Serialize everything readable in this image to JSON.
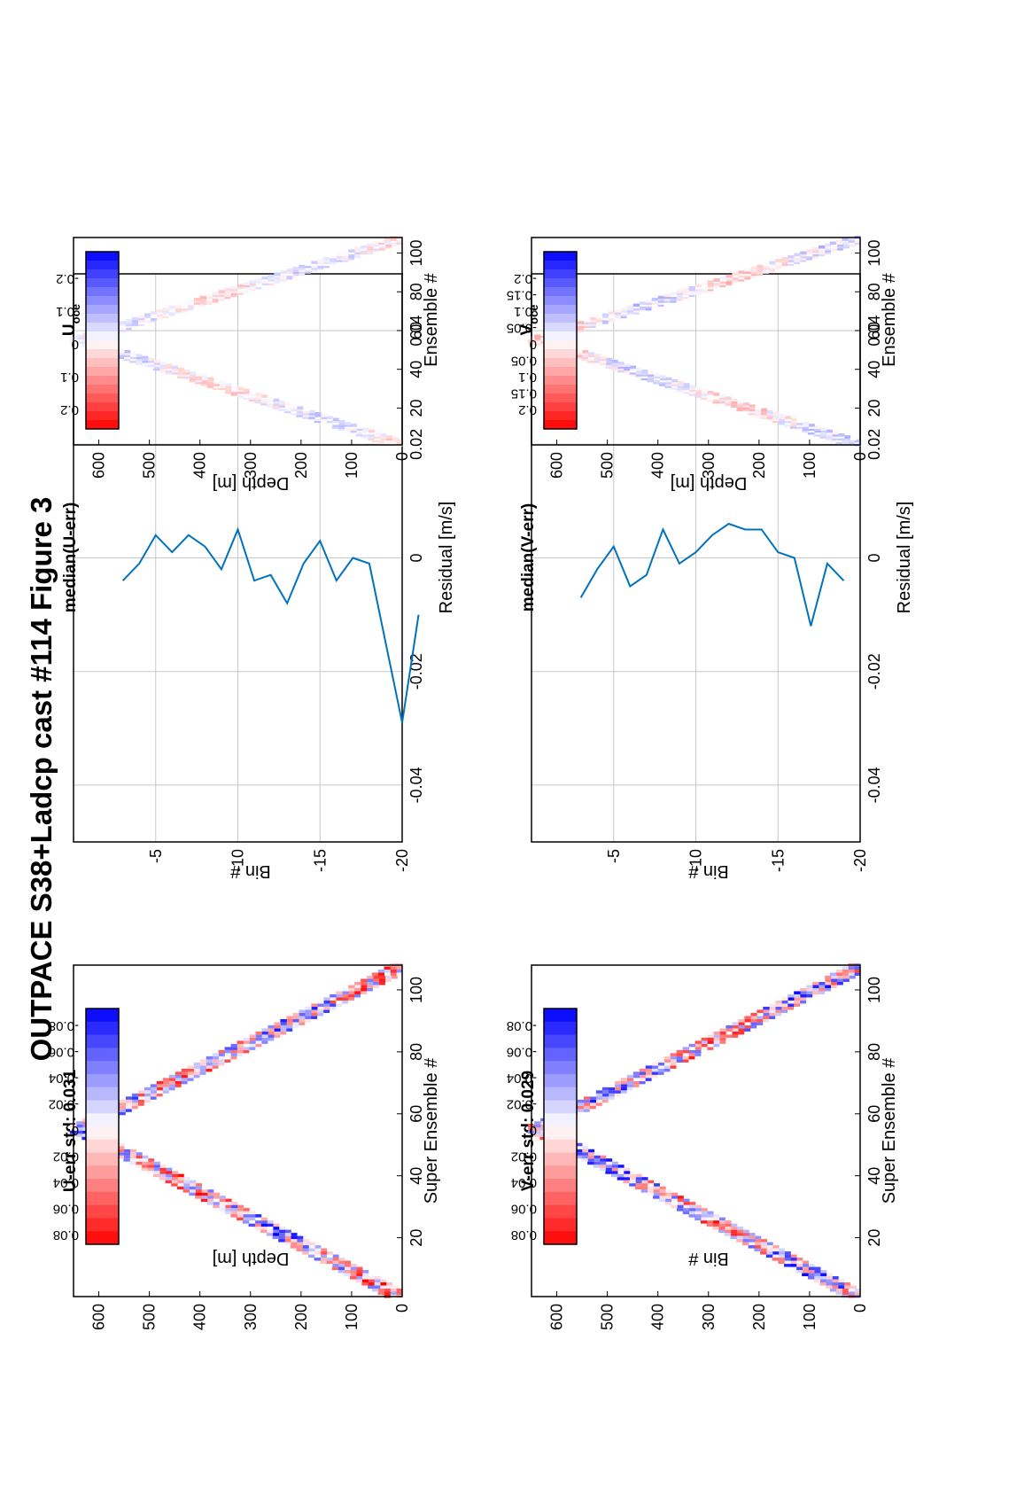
{
  "figure": {
    "title": "OUTPACE S38+Ladcp cast #114  Figure 3"
  },
  "colors": {
    "positive": "#ff0000",
    "negative": "#0000ff",
    "zero": "#ffffff",
    "line": "#0072bd",
    "grid": "#c8c8c8"
  },
  "panels": {
    "u_err": {
      "title": "U-err std: 0.031",
      "ylabel": "Depth [m]",
      "xlabel": "Super Ensemble #",
      "colorbar_ticks": [
        "0.08",
        "0.06",
        "0.04",
        "0.02",
        "0",
        "-0.02",
        "-0.04",
        "-0.06",
        "-0.08"
      ]
    },
    "median_u": {
      "title": "median(U-err)",
      "ylabel": "Bin #",
      "xlabel": "Residual [m/s]"
    },
    "u_oce": {
      "title": "U",
      "title_sub": "oce",
      "ylabel": "Depth [m]",
      "xlabel": "Ensemble #",
      "colorbar_ticks": [
        "0.2",
        "0.1",
        "0",
        "-0.1",
        "-0.2"
      ]
    },
    "v_err": {
      "title": "V-err std: 0.029",
      "ylabel": "Bin #",
      "xlabel": "Super Ensemble #",
      "colorbar_ticks": [
        "0.08",
        "0.06",
        "0.04",
        "0.02",
        "0",
        "-0.02",
        "-0.04",
        "-0.06",
        "-0.08"
      ]
    },
    "median_v": {
      "title": "median(V-err)",
      "ylabel": "Bin #",
      "xlabel": "Residual [m/s]"
    },
    "v_oce": {
      "title": "V",
      "title_sub": "oce",
      "ylabel": "Depth [m]",
      "xlabel": "Ensemble #",
      "colorbar_ticks": [
        "0.2",
        "0.15",
        "0.1",
        "0.05",
        "0",
        "-0.05",
        "-0.1",
        "-0.15",
        "-0.2"
      ]
    }
  },
  "chart_data": [
    {
      "id": "u_err",
      "type": "heatmap",
      "title": "U-err std: 0.031",
      "xlabel": "Super Ensemble #",
      "ylabel": "Depth [m]",
      "xlim": [
        1,
        108
      ],
      "ylim": [
        650,
        0
      ],
      "xticks": [
        20,
        40,
        60,
        80,
        100
      ],
      "yticks": [
        0,
        100,
        200,
        300,
        400,
        500,
        600
      ],
      "clim": [
        -0.09,
        0.09
      ],
      "colorbar_levels": 18,
      "pattern": {
        "turn_x": 55,
        "max_depth": 648,
        "band_width": 15,
        "amplitude": 0.07,
        "scale": 0.5,
        "seed": 1
      }
    },
    {
      "id": "median_u",
      "type": "line",
      "title": "median(U-err)",
      "xlabel": "Residual [m/s]",
      "ylabel": "Bin #",
      "xlim": [
        -0.05,
        0.05
      ],
      "ylim": [
        -20,
        0
      ],
      "xticks": [
        -0.04,
        -0.02,
        0,
        0.02,
        0.04
      ],
      "yticks": [
        -5,
        -10,
        -15,
        -20
      ],
      "grid": true,
      "x": [
        -0.004,
        -0.001,
        0.004,
        0.001,
        0.004,
        0.002,
        -0.002,
        0.005,
        -0.004,
        -0.003,
        -0.008,
        -0.001,
        0.003,
        -0.004,
        0.0,
        -0.001,
        -0.029,
        -0.01
      ],
      "y": [
        -3,
        -4,
        -5,
        -6,
        -7,
        -8,
        -9,
        -10,
        -11,
        -12,
        -13,
        -14,
        -15,
        -16,
        -17,
        -18,
        -20,
        -21
      ]
    },
    {
      "id": "u_oce",
      "type": "heatmap",
      "title": "U oce",
      "xlabel": "Ensemble #",
      "ylabel": "Depth [m]",
      "xlim": [
        1,
        108
      ],
      "ylim": [
        650,
        0
      ],
      "xticks": [
        20,
        40,
        60,
        80,
        100
      ],
      "yticks": [
        0,
        100,
        200,
        300,
        400,
        500,
        600
      ],
      "clim": [
        -0.27,
        0.27
      ],
      "colorbar_levels": 20,
      "pattern": {
        "turn_x": 55,
        "max_depth": 648,
        "band_width": 15,
        "amplitude": 0.05,
        "scale": 1.0,
        "seed": 2
      }
    },
    {
      "id": "v_err",
      "type": "heatmap",
      "title": "V-err std: 0.029",
      "xlabel": "Super Ensemble #",
      "ylabel": "Bin #",
      "xlim": [
        1,
        108
      ],
      "ylim": [
        650,
        0
      ],
      "xticks": [
        20,
        40,
        60,
        80,
        100
      ],
      "yticks": [
        0,
        100,
        200,
        300,
        400,
        500,
        600
      ],
      "clim": [
        -0.09,
        0.09
      ],
      "colorbar_levels": 18,
      "pattern": {
        "turn_x": 55,
        "max_depth": 648,
        "band_width": 15,
        "amplitude": 0.07,
        "scale": 0.5,
        "seed": 3
      }
    },
    {
      "id": "median_v",
      "type": "line",
      "title": "median(V-err)",
      "xlabel": "Residual [m/s]",
      "ylabel": "Bin #",
      "xlim": [
        -0.05,
        0.05
      ],
      "ylim": [
        -20,
        0
      ],
      "xticks": [
        -0.04,
        -0.02,
        0,
        0.02,
        0.04
      ],
      "yticks": [
        -5,
        -10,
        -15,
        -20
      ],
      "grid": true,
      "x": [
        -0.007,
        -0.002,
        0.002,
        -0.005,
        -0.003,
        0.005,
        -0.001,
        0.001,
        0.004,
        0.006,
        0.005,
        0.005,
        0.001,
        0.0,
        -0.012,
        -0.001,
        -0.004
      ],
      "y": [
        -3,
        -4,
        -5,
        -6,
        -7,
        -8,
        -9,
        -10,
        -11,
        -12,
        -13,
        -14,
        -15,
        -16,
        -17,
        -18,
        -19
      ]
    },
    {
      "id": "v_oce",
      "type": "heatmap",
      "title": "V oce",
      "xlabel": "Ensemble #",
      "ylabel": "Depth [m]",
      "xlim": [
        1,
        108
      ],
      "ylim": [
        650,
        0
      ],
      "xticks": [
        20,
        40,
        60,
        80,
        100
      ],
      "yticks": [
        0,
        100,
        200,
        300,
        400,
        500,
        600
      ],
      "clim": [
        -0.27,
        0.27
      ],
      "colorbar_levels": 20,
      "pattern": {
        "turn_x": 55,
        "max_depth": 648,
        "band_width": 15,
        "amplitude": 0.06,
        "scale": 1.0,
        "seed": 4
      }
    }
  ]
}
